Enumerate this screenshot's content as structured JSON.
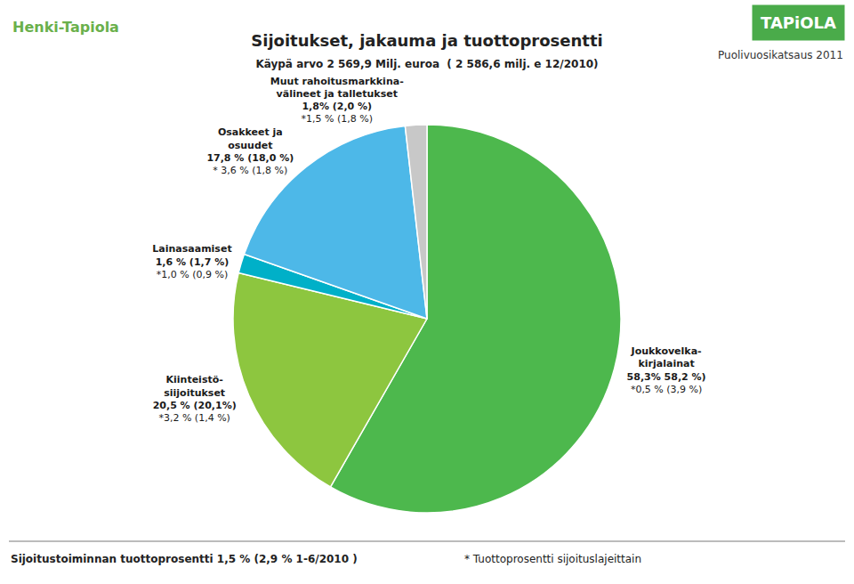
{
  "chart_data": {
    "type": "pie",
    "title": "Sijoitukset, jakauma ja tuottoprosentti",
    "subtitle": "Käypä arvo 2 569,9 Milj. euroa  ( 2 586,6 milj. e 12/2010)",
    "categories": [
      "Joukkovelka-\nkirjalainat",
      "Kiinteistö-\nsiijoitukset",
      "Lainasaamiset",
      "Osakkeet ja\nosuudet",
      "Muut rahoitusmarkkina-\nvälineet ja talletukset"
    ],
    "values": [
      58.3,
      20.5,
      1.6,
      17.8,
      1.8
    ],
    "value_labels": [
      "58,3% 58,2 %)",
      "20,5 % (20,1%)",
      "1,6 % (1,7 %)",
      "17,8 % (18,0 %)",
      "1,8% (2,0 %)"
    ],
    "return_labels": [
      "*0,5 % (3,9 %)",
      "*3,2 % (1,4 %)",
      "*1,0 % (0,9 %)",
      "* 3,6 % (1,8 %)",
      "*1,5 % (1,8 %)"
    ],
    "colors": [
      "#4db84d",
      "#8dc63f",
      "#00b0c8",
      "#4db8e8",
      "#c8c8c8"
    ],
    "data_labels": true,
    "annotations": [
      "Henki-Tapiola",
      "Puolivuosikatsaus 2011",
      "TAPiOLA",
      "Sijoitustoiminnan tuottoprosentti 1,5 % (2,9 % 1-6/2010 )",
      "* Tuottoprosentti sijoituslajeittain"
    ]
  }
}
